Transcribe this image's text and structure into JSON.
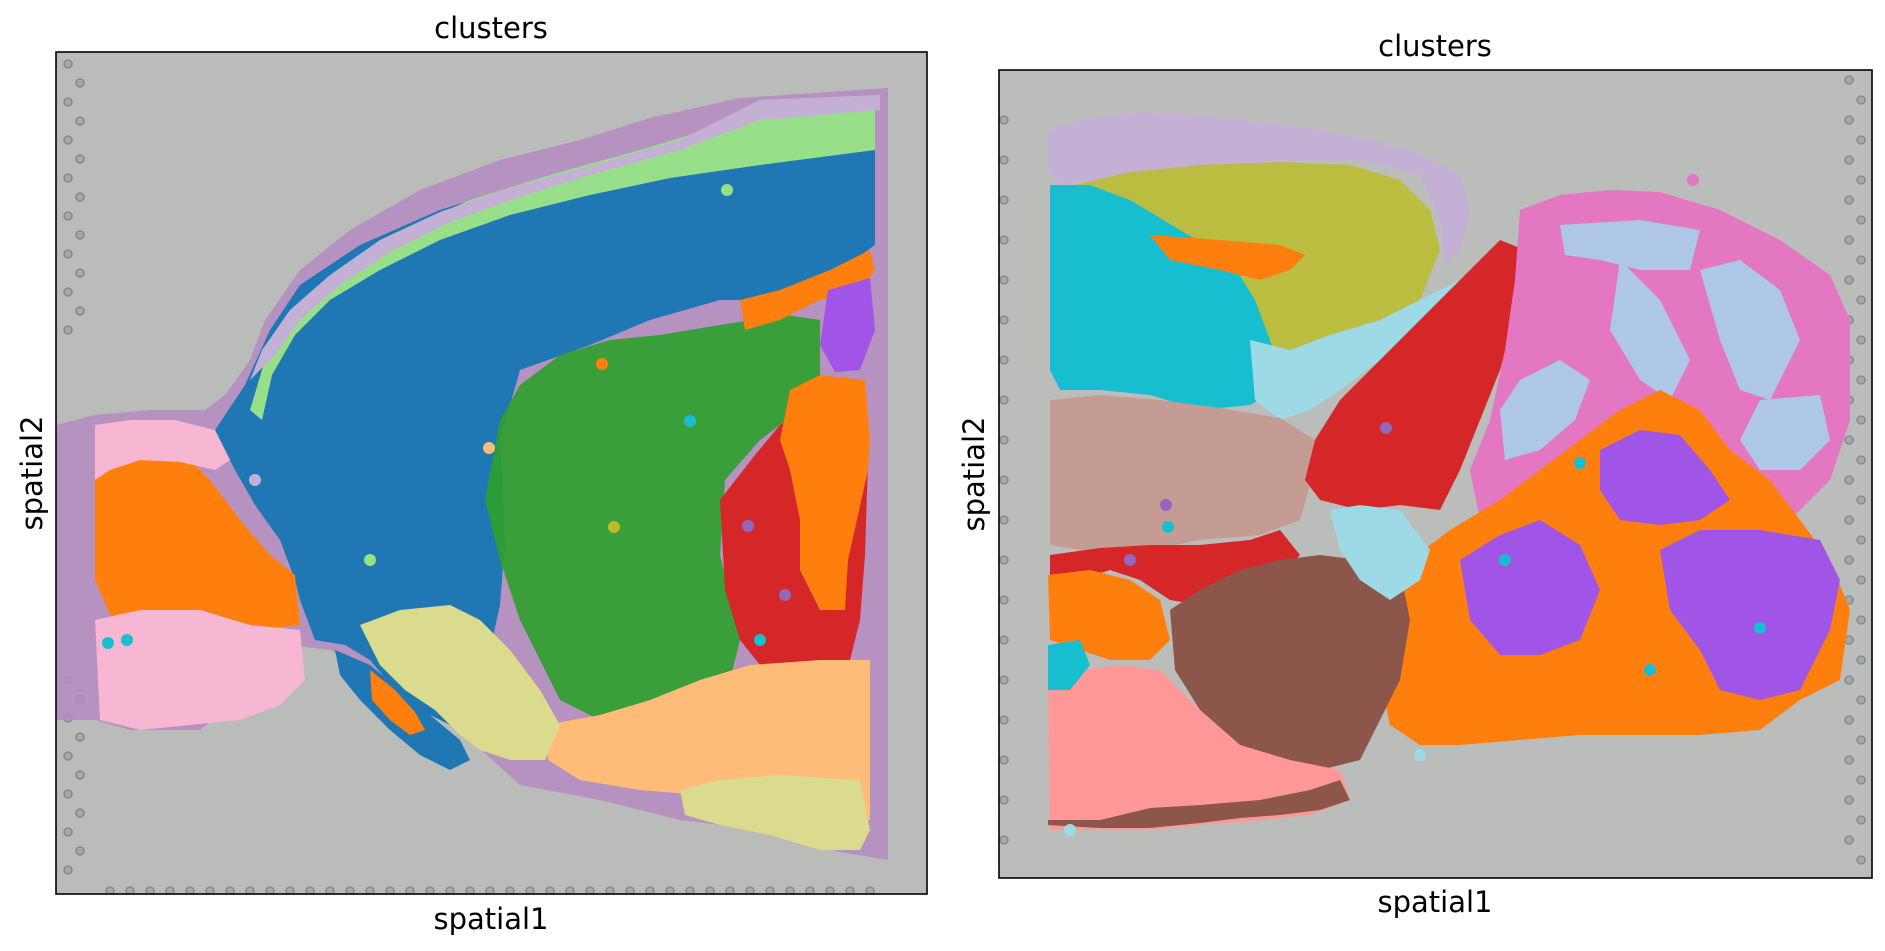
{
  "chart_data": [
    {
      "type": "scatter",
      "title": "clusters",
      "xlabel": "spatial1",
      "ylabel": "spatial2",
      "grid": false,
      "background": "tissue-image",
      "x_ticks": [],
      "y_ticks": [],
      "legend": "none",
      "colors": {
        "clusters": [
          "#1f77b4",
          "#ff7f0e",
          "#2ca02c",
          "#d62728",
          "#9467bd",
          "#8c564b",
          "#e377c2",
          "#bcbd22",
          "#17becf",
          "#aec7e8",
          "#ffbb78",
          "#98df8a",
          "#ff9896",
          "#c5b0d5",
          "#c49c94",
          "#f7b6d2",
          "#dbdb8d",
          "#9edae5"
        ]
      }
    },
    {
      "type": "scatter",
      "title": "clusters",
      "xlabel": "spatial1",
      "ylabel": "spatial2",
      "grid": false,
      "background": "tissue-image",
      "x_ticks": [],
      "y_ticks": [],
      "legend": "none",
      "colors": {
        "clusters": [
          "#1f77b4",
          "#ff7f0e",
          "#2ca02c",
          "#d62728",
          "#9467bd",
          "#8c564b",
          "#e377c2",
          "#bcbd22",
          "#17becf",
          "#aec7e8",
          "#ffbb78",
          "#98df8a",
          "#ff9896",
          "#c5b0d5",
          "#c49c94",
          "#f7b6d2",
          "#dbdb8d",
          "#9edae5"
        ]
      }
    }
  ]
}
